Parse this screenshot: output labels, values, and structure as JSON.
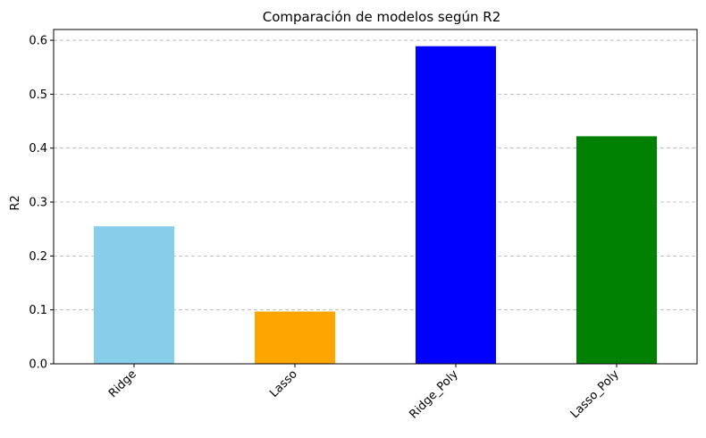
{
  "chart_data": {
    "type": "bar",
    "title": "Comparación de modelos según R2",
    "xlabel": "",
    "ylabel": "R2",
    "categories": [
      "Ridge",
      "Lasso",
      "Ridge_Poly",
      "Lasso_Poly"
    ],
    "values": [
      0.255,
      0.097,
      0.589,
      0.422
    ],
    "colors": [
      "#87ceeb",
      "#ffa500",
      "#0000ff",
      "#008000"
    ],
    "ylim": [
      0,
      0.62
    ],
    "yticks": [
      0.0,
      0.1,
      0.2,
      0.3,
      0.4,
      0.5,
      0.6
    ],
    "ytick_labels": [
      "0.0",
      "0.1",
      "0.2",
      "0.3",
      "0.4",
      "0.5",
      "0.6"
    ],
    "grid": "horizontal dashed",
    "legend": "none"
  }
}
